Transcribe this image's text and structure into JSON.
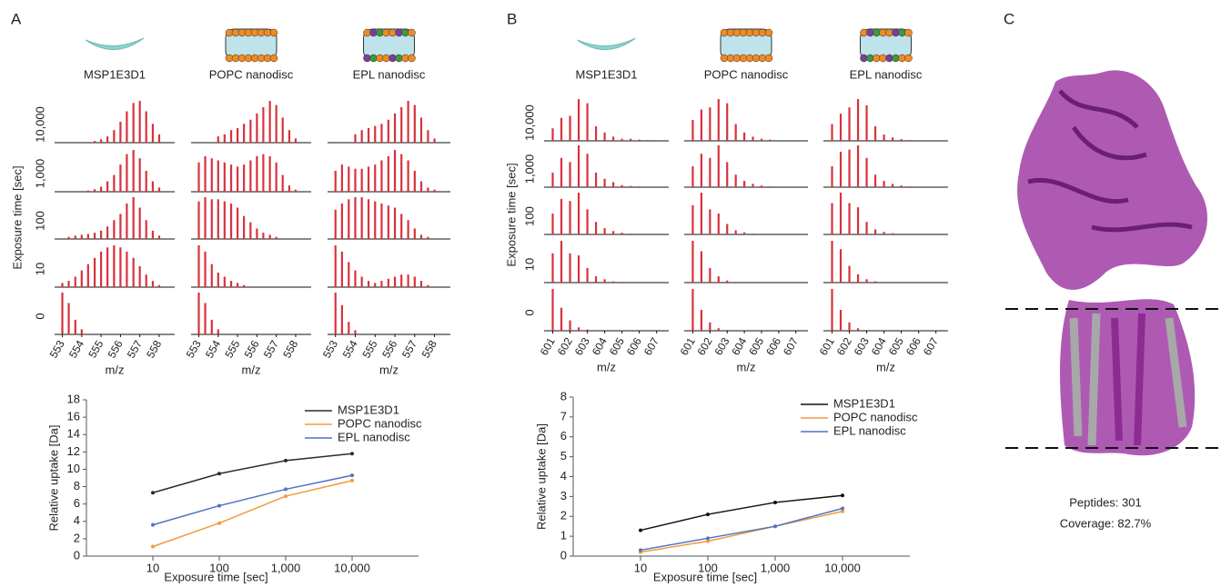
{
  "chart_data": [
    {
      "type": "spectra",
      "panel": "A",
      "ylabel": "Exposure time [sec]",
      "xlabel": "m/z",
      "color": "#d8323c",
      "rows": [
        "10,000",
        "1,000",
        "100",
        "10",
        "0"
      ],
      "x": [
        553,
        553.33,
        553.67,
        554,
        554.33,
        554.67,
        555,
        555.33,
        555.67,
        556,
        556.33,
        556.67,
        557,
        557.33,
        557.67,
        558
      ],
      "xlim": [
        552.6,
        558.8
      ],
      "xticks": [
        553,
        554,
        555,
        556,
        557,
        558
      ],
      "ylim": [
        0,
        1
      ],
      "columns": [
        {
          "name": "MSP1E3D1",
          "spectra": [
            [
              0,
              0,
              0,
              0,
              0,
              0.04,
              0.08,
              0.15,
              0.3,
              0.5,
              0.75,
              0.95,
              1,
              0.75,
              0.45,
              0.2
            ],
            [
              0,
              0,
              0,
              0,
              0.03,
              0.06,
              0.12,
              0.25,
              0.4,
              0.65,
              0.9,
              1,
              0.8,
              0.5,
              0.25,
              0.1
            ],
            [
              0,
              0.05,
              0.08,
              0.1,
              0.12,
              0.15,
              0.2,
              0.3,
              0.45,
              0.6,
              0.85,
              1,
              0.75,
              0.45,
              0.2,
              0.08
            ],
            [
              0.1,
              0.15,
              0.25,
              0.4,
              0.55,
              0.7,
              0.85,
              0.95,
              1,
              0.95,
              0.85,
              0.7,
              0.5,
              0.3,
              0.15,
              0.05
            ],
            [
              1,
              0.75,
              0.35,
              0.12,
              0,
              0,
              0,
              0,
              0,
              0,
              0,
              0,
              0,
              0,
              0,
              0
            ]
          ]
        },
        {
          "name": "POPC nanodisc",
          "spectra": [
            [
              0,
              0,
              0,
              0.15,
              0.2,
              0.3,
              0.35,
              0.45,
              0.55,
              0.7,
              0.85,
              1,
              0.9,
              0.6,
              0.3,
              0.1
            ],
            [
              0.7,
              0.85,
              0.8,
              0.75,
              0.7,
              0.65,
              0.6,
              0.65,
              0.75,
              0.85,
              0.9,
              0.85,
              0.7,
              0.4,
              0.15,
              0.05
            ],
            [
              0.9,
              1,
              0.95,
              0.95,
              0.9,
              0.85,
              0.75,
              0.55,
              0.4,
              0.25,
              0.15,
              0.1,
              0.05,
              0,
              0,
              0
            ],
            [
              1,
              0.85,
              0.55,
              0.35,
              0.25,
              0.15,
              0.1,
              0.05,
              0,
              0,
              0,
              0,
              0,
              0,
              0,
              0
            ],
            [
              1,
              0.75,
              0.35,
              0.12,
              0,
              0,
              0,
              0,
              0,
              0,
              0,
              0,
              0,
              0,
              0,
              0
            ]
          ]
        },
        {
          "name": "EPL nanodisc",
          "spectra": [
            [
              0,
              0,
              0,
              0.2,
              0.3,
              0.35,
              0.4,
              0.45,
              0.55,
              0.7,
              0.85,
              1,
              0.9,
              0.6,
              0.3,
              0.1
            ],
            [
              0.5,
              0.65,
              0.6,
              0.55,
              0.55,
              0.6,
              0.65,
              0.75,
              0.85,
              1,
              0.9,
              0.75,
              0.5,
              0.25,
              0.1,
              0.05
            ],
            [
              0.7,
              0.85,
              0.95,
              1,
              1,
              0.95,
              0.9,
              0.85,
              0.8,
              0.75,
              0.6,
              0.45,
              0.25,
              0.1,
              0.05,
              0
            ],
            [
              1,
              0.85,
              0.6,
              0.4,
              0.25,
              0.15,
              0.1,
              0.15,
              0.2,
              0.25,
              0.3,
              0.3,
              0.25,
              0.15,
              0.05,
              0
            ],
            [
              1,
              0.7,
              0.3,
              0.1,
              0,
              0,
              0,
              0,
              0,
              0,
              0,
              0,
              0,
              0,
              0,
              0
            ]
          ]
        }
      ]
    },
    {
      "type": "spectra",
      "panel": "B",
      "ylabel": "Exposure time [sec]",
      "xlabel": "m/z",
      "color": "#d8323c",
      "rows": [
        "10,000",
        "1,000",
        "100",
        "10",
        "0"
      ],
      "x": [
        601,
        601.5,
        602,
        602.5,
        603,
        603.5,
        604,
        604.5,
        605,
        605.5,
        606,
        606.5,
        607
      ],
      "xlim": [
        600.5,
        607.7
      ],
      "xticks": [
        601,
        602,
        603,
        604,
        605,
        606,
        607
      ],
      "ylim": [
        0,
        1
      ],
      "columns": [
        {
          "name": "MSP1E3D1",
          "spectra": [
            [
              0.3,
              0.55,
              0.6,
              1,
              0.9,
              0.35,
              0.2,
              0.1,
              0.05,
              0.05,
              0.03,
              0.02,
              0
            ],
            [
              0.35,
              0.7,
              0.6,
              1,
              0.8,
              0.35,
              0.2,
              0.12,
              0.05,
              0.03,
              0.02,
              0,
              0
            ],
            [
              0.5,
              0.85,
              0.8,
              1,
              0.6,
              0.3,
              0.15,
              0.08,
              0.04,
              0.02,
              0,
              0,
              0
            ],
            [
              0.7,
              1,
              0.7,
              0.65,
              0.35,
              0.15,
              0.08,
              0.03,
              0.02,
              0,
              0,
              0,
              0
            ],
            [
              1,
              0.55,
              0.25,
              0.08,
              0.03,
              0,
              0,
              0,
              0,
              0,
              0,
              0,
              0
            ]
          ]
        },
        {
          "name": "POPC nanodisc",
          "spectra": [
            [
              0.5,
              0.75,
              0.8,
              1,
              0.9,
              0.4,
              0.2,
              0.1,
              0.05,
              0.03,
              0,
              0,
              0
            ],
            [
              0.5,
              0.8,
              0.7,
              1,
              0.6,
              0.3,
              0.15,
              0.08,
              0.04,
              0.02,
              0,
              0,
              0
            ],
            [
              0.7,
              1,
              0.6,
              0.5,
              0.25,
              0.1,
              0.05,
              0.02,
              0,
              0,
              0,
              0,
              0
            ],
            [
              1,
              0.75,
              0.35,
              0.15,
              0.05,
              0.02,
              0,
              0,
              0,
              0,
              0,
              0,
              0
            ],
            [
              1,
              0.5,
              0.2,
              0.06,
              0.02,
              0,
              0,
              0,
              0,
              0,
              0,
              0,
              0
            ]
          ]
        },
        {
          "name": "EPL nanodisc",
          "spectra": [
            [
              0.4,
              0.65,
              0.8,
              1,
              0.85,
              0.35,
              0.15,
              0.08,
              0.04,
              0.02,
              0,
              0,
              0
            ],
            [
              0.5,
              0.85,
              0.9,
              1,
              0.7,
              0.3,
              0.15,
              0.08,
              0.04,
              0.02,
              0,
              0,
              0
            ],
            [
              0.75,
              1,
              0.75,
              0.65,
              0.3,
              0.12,
              0.06,
              0.03,
              0,
              0,
              0,
              0,
              0
            ],
            [
              1,
              0.8,
              0.4,
              0.2,
              0.08,
              0.03,
              0,
              0,
              0,
              0,
              0,
              0,
              0
            ],
            [
              1,
              0.5,
              0.2,
              0.06,
              0.02,
              0,
              0,
              0,
              0,
              0,
              0,
              0,
              0
            ]
          ]
        }
      ]
    },
    {
      "type": "line",
      "xlabel": "Exposure time [sec]",
      "ylabel": "Relative uptake [Da]",
      "xscale": "log",
      "x": [
        10,
        100,
        1000,
        10000
      ],
      "xlim": [
        1,
        100000
      ],
      "xticks": [
        10,
        100,
        {
          "value": 1000,
          "label": "1,000"
        },
        {
          "value": 10000,
          "label": "10,000"
        }
      ],
      "ylim": [
        0,
        18
      ],
      "yticks": [
        0,
        2,
        4,
        6,
        8,
        10,
        12,
        14,
        16,
        18
      ],
      "legend": "top-right",
      "series": [
        {
          "name": "MSP1E3D1",
          "color": "#2b2b2b",
          "values": [
            7.3,
            9.5,
            11.0,
            11.8
          ]
        },
        {
          "name": "POPC nanodisc",
          "color": "#f39a3e",
          "values": [
            1.1,
            3.8,
            6.9,
            8.7
          ]
        },
        {
          "name": "EPL nanodisc",
          "color": "#4f72c4",
          "values": [
            3.6,
            5.8,
            7.7,
            9.3
          ]
        }
      ]
    },
    {
      "type": "line",
      "xlabel": "Exposure time [sec]",
      "ylabel": "Relative uptake [Da]",
      "xscale": "log",
      "x": [
        10,
        100,
        1000,
        10000
      ],
      "xlim": [
        1,
        100000
      ],
      "xticks": [
        10,
        100,
        {
          "value": 1000,
          "label": "1,000"
        },
        {
          "value": 10000,
          "label": "10,000"
        }
      ],
      "ylim": [
        0,
        8
      ],
      "yticks": [
        0,
        1,
        2,
        3,
        4,
        5,
        6,
        7,
        8
      ],
      "legend": "top-right",
      "series": [
        {
          "name": "MSP1E3D1",
          "color": "#111111",
          "values": [
            1.3,
            2.1,
            2.7,
            3.05
          ]
        },
        {
          "name": "POPC nanodisc",
          "color": "#f39a3e",
          "values": [
            0.2,
            0.75,
            1.5,
            2.25
          ]
        },
        {
          "name": "EPL nanodisc",
          "color": "#4f72c4",
          "values": [
            0.3,
            0.9,
            1.5,
            2.4
          ]
        }
      ]
    }
  ],
  "panel_c": {
    "label": "C",
    "annotations": [
      "Peptides:  301",
      "Coverage: 82.7%"
    ]
  }
}
